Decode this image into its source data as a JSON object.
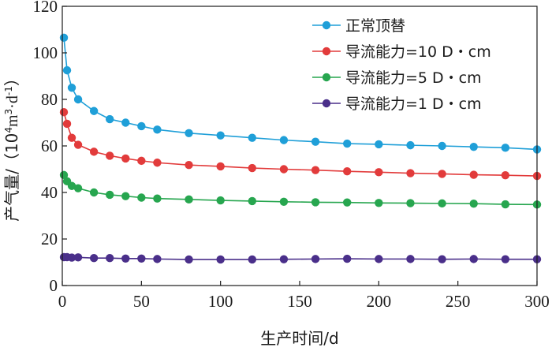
{
  "chart_data": {
    "type": "line",
    "title": "",
    "xlabel": "生产时间/d",
    "ylabel_prefix": "产气量/（10",
    "ylabel_sup1": "4",
    "ylabel_mid": "m",
    "ylabel_sup2": "3",
    "ylabel_mid2": "·d",
    "ylabel_sup3": "-1",
    "ylabel_suffix": "）",
    "xlim": [
      0,
      300
    ],
    "ylim": [
      0,
      120
    ],
    "xticks": [
      "0",
      "50",
      "100",
      "150",
      "200",
      "250",
      "300"
    ],
    "yticks": [
      "0",
      "20",
      "40",
      "60",
      "80",
      "100",
      "120"
    ],
    "legend_position": "top-right",
    "grid": false,
    "series": [
      {
        "name": "正常顶替",
        "color": "#1f9fd8",
        "points": [
          [
            1,
            106.5
          ],
          [
            3,
            92.5
          ],
          [
            6,
            85
          ],
          [
            10,
            80
          ],
          [
            20,
            75
          ],
          [
            30,
            71.5
          ],
          [
            40,
            70
          ],
          [
            50,
            68.5
          ],
          [
            60,
            67
          ],
          [
            80,
            65.5
          ],
          [
            100,
            64.5
          ],
          [
            120,
            63.5
          ],
          [
            140,
            62.5
          ],
          [
            160,
            61.8
          ],
          [
            180,
            61
          ],
          [
            200,
            60.7
          ],
          [
            220,
            60.3
          ],
          [
            240,
            60
          ],
          [
            260,
            59.6
          ],
          [
            280,
            59.2
          ],
          [
            300,
            58.5
          ]
        ]
      },
      {
        "name": "导流能力=10 D・cm",
        "color": "#e23b3b",
        "points": [
          [
            1,
            74.5
          ],
          [
            3,
            69.5
          ],
          [
            6,
            63.5
          ],
          [
            10,
            60.5
          ],
          [
            20,
            57.5
          ],
          [
            30,
            55.8
          ],
          [
            40,
            54.6
          ],
          [
            50,
            53.6
          ],
          [
            60,
            52.8
          ],
          [
            80,
            51.8
          ],
          [
            100,
            51.2
          ],
          [
            120,
            50.5
          ],
          [
            140,
            50
          ],
          [
            160,
            49.6
          ],
          [
            180,
            49.1
          ],
          [
            200,
            48.7
          ],
          [
            220,
            48.3
          ],
          [
            240,
            48
          ],
          [
            260,
            47.6
          ],
          [
            280,
            47.4
          ],
          [
            300,
            47.1
          ]
        ]
      },
      {
        "name": "导流能力=5 D・cm",
        "color": "#27a64f",
        "points": [
          [
            1,
            47.5
          ],
          [
            3,
            44.8
          ],
          [
            6,
            42.8
          ],
          [
            10,
            41.8
          ],
          [
            20,
            40
          ],
          [
            30,
            39
          ],
          [
            40,
            38.4
          ],
          [
            50,
            37.8
          ],
          [
            60,
            37.4
          ],
          [
            80,
            37
          ],
          [
            100,
            36.6
          ],
          [
            120,
            36.3
          ],
          [
            140,
            36
          ],
          [
            160,
            35.8
          ],
          [
            180,
            35.7
          ],
          [
            200,
            35.5
          ],
          [
            220,
            35.4
          ],
          [
            240,
            35.3
          ],
          [
            260,
            35.2
          ],
          [
            280,
            34.9
          ],
          [
            300,
            34.8
          ]
        ]
      },
      {
        "name": "导流能力=1 D・cm",
        "color": "#4a2f8a",
        "points": [
          [
            1,
            12.2
          ],
          [
            3,
            12.2
          ],
          [
            6,
            12
          ],
          [
            10,
            12.1
          ],
          [
            20,
            11.8
          ],
          [
            30,
            11.8
          ],
          [
            40,
            11.6
          ],
          [
            50,
            11.6
          ],
          [
            60,
            11.4
          ],
          [
            80,
            11.2
          ],
          [
            100,
            11.2
          ],
          [
            120,
            11.2
          ],
          [
            140,
            11.3
          ],
          [
            160,
            11.4
          ],
          [
            180,
            11.5
          ],
          [
            200,
            11.4
          ],
          [
            220,
            11.4
          ],
          [
            240,
            11.3
          ],
          [
            260,
            11.4
          ],
          [
            280,
            11.3
          ],
          [
            300,
            11.3
          ]
        ]
      }
    ]
  }
}
